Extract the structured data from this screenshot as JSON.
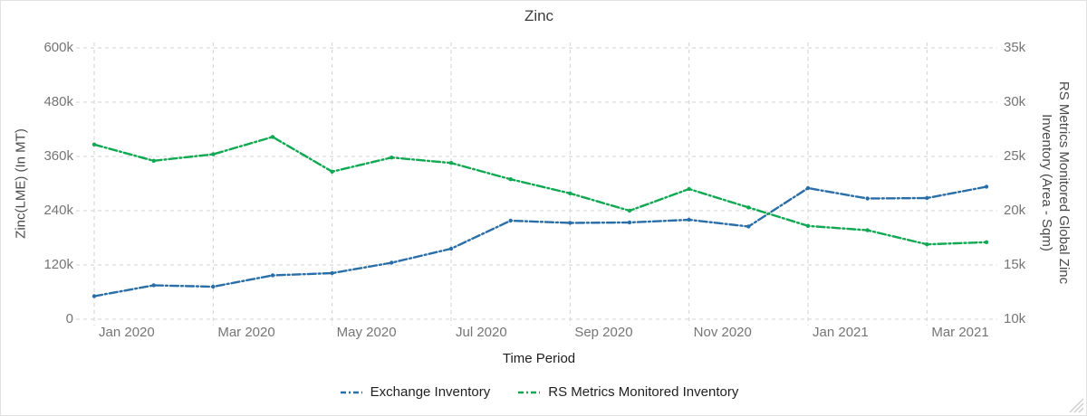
{
  "page": {
    "background": "#ffffff",
    "border_color": "#e2e2e2",
    "grid_color": "#d2d2d2",
    "tick_text_color": "#757575"
  },
  "chart_data": {
    "type": "line",
    "title": "Zinc",
    "x": [
      "Jan 2020",
      "Feb 2020",
      "Mar 2020",
      "Apr 2020",
      "May 2020",
      "Jun 2020",
      "Jul 2020",
      "Aug 2020",
      "Sep 2020",
      "Oct 2020",
      "Nov 2020",
      "Dec 2020",
      "Jan 2021",
      "Feb 2021",
      "Mar 2021",
      "Apr 2021"
    ],
    "x_axis": {
      "label": "Time Period",
      "labeled_month_indices": [
        0,
        2,
        4,
        6,
        8,
        10,
        12,
        14
      ],
      "tick_labels": [
        "Jan 2020",
        "Mar 2020",
        "May 2020",
        "Jul 2020",
        "Sep 2020",
        "Nov 2020",
        "Jan 2021",
        "Mar 2021"
      ]
    },
    "left_axis": {
      "label": "Zinc(LME) (In MT)",
      "min": 0,
      "max": 600000,
      "tick_values": [
        600000,
        480000,
        360000,
        240000,
        120000,
        0
      ],
      "tick_labels": [
        "600k",
        "480k",
        "360k",
        "240k",
        "120k",
        "0"
      ]
    },
    "right_axis": {
      "label_lines": [
        "RS Metrics Monitored Global Zinc",
        "Inventory (Area - Sqm)"
      ],
      "min": 10000,
      "max": 35000,
      "tick_values": [
        35000,
        30000,
        25000,
        20000,
        15000,
        10000
      ],
      "tick_labels": [
        "35k",
        "30k",
        "25k",
        "20k",
        "15k",
        "10k"
      ]
    },
    "series": [
      {
        "name": "Exchange Inventory",
        "axis": "left",
        "color": "#2a6ea8",
        "values": [
          51000,
          75000,
          72000,
          97000,
          102000,
          125000,
          156000,
          218000,
          213000,
          214000,
          220000,
          205000,
          290000,
          267000,
          268000,
          293000
        ]
      },
      {
        "name": "RS Metrics Monitored Inventory",
        "axis": "right",
        "color": "#10a853",
        "values": [
          26100,
          24600,
          25200,
          26800,
          23600,
          24900,
          24400,
          22900,
          21600,
          20000,
          22000,
          20300,
          18600,
          18200,
          16900,
          17100
        ]
      }
    ],
    "grid": "dashed",
    "legend_position": "bottom"
  },
  "icons": {
    "resize_handle": "resize-grip"
  }
}
